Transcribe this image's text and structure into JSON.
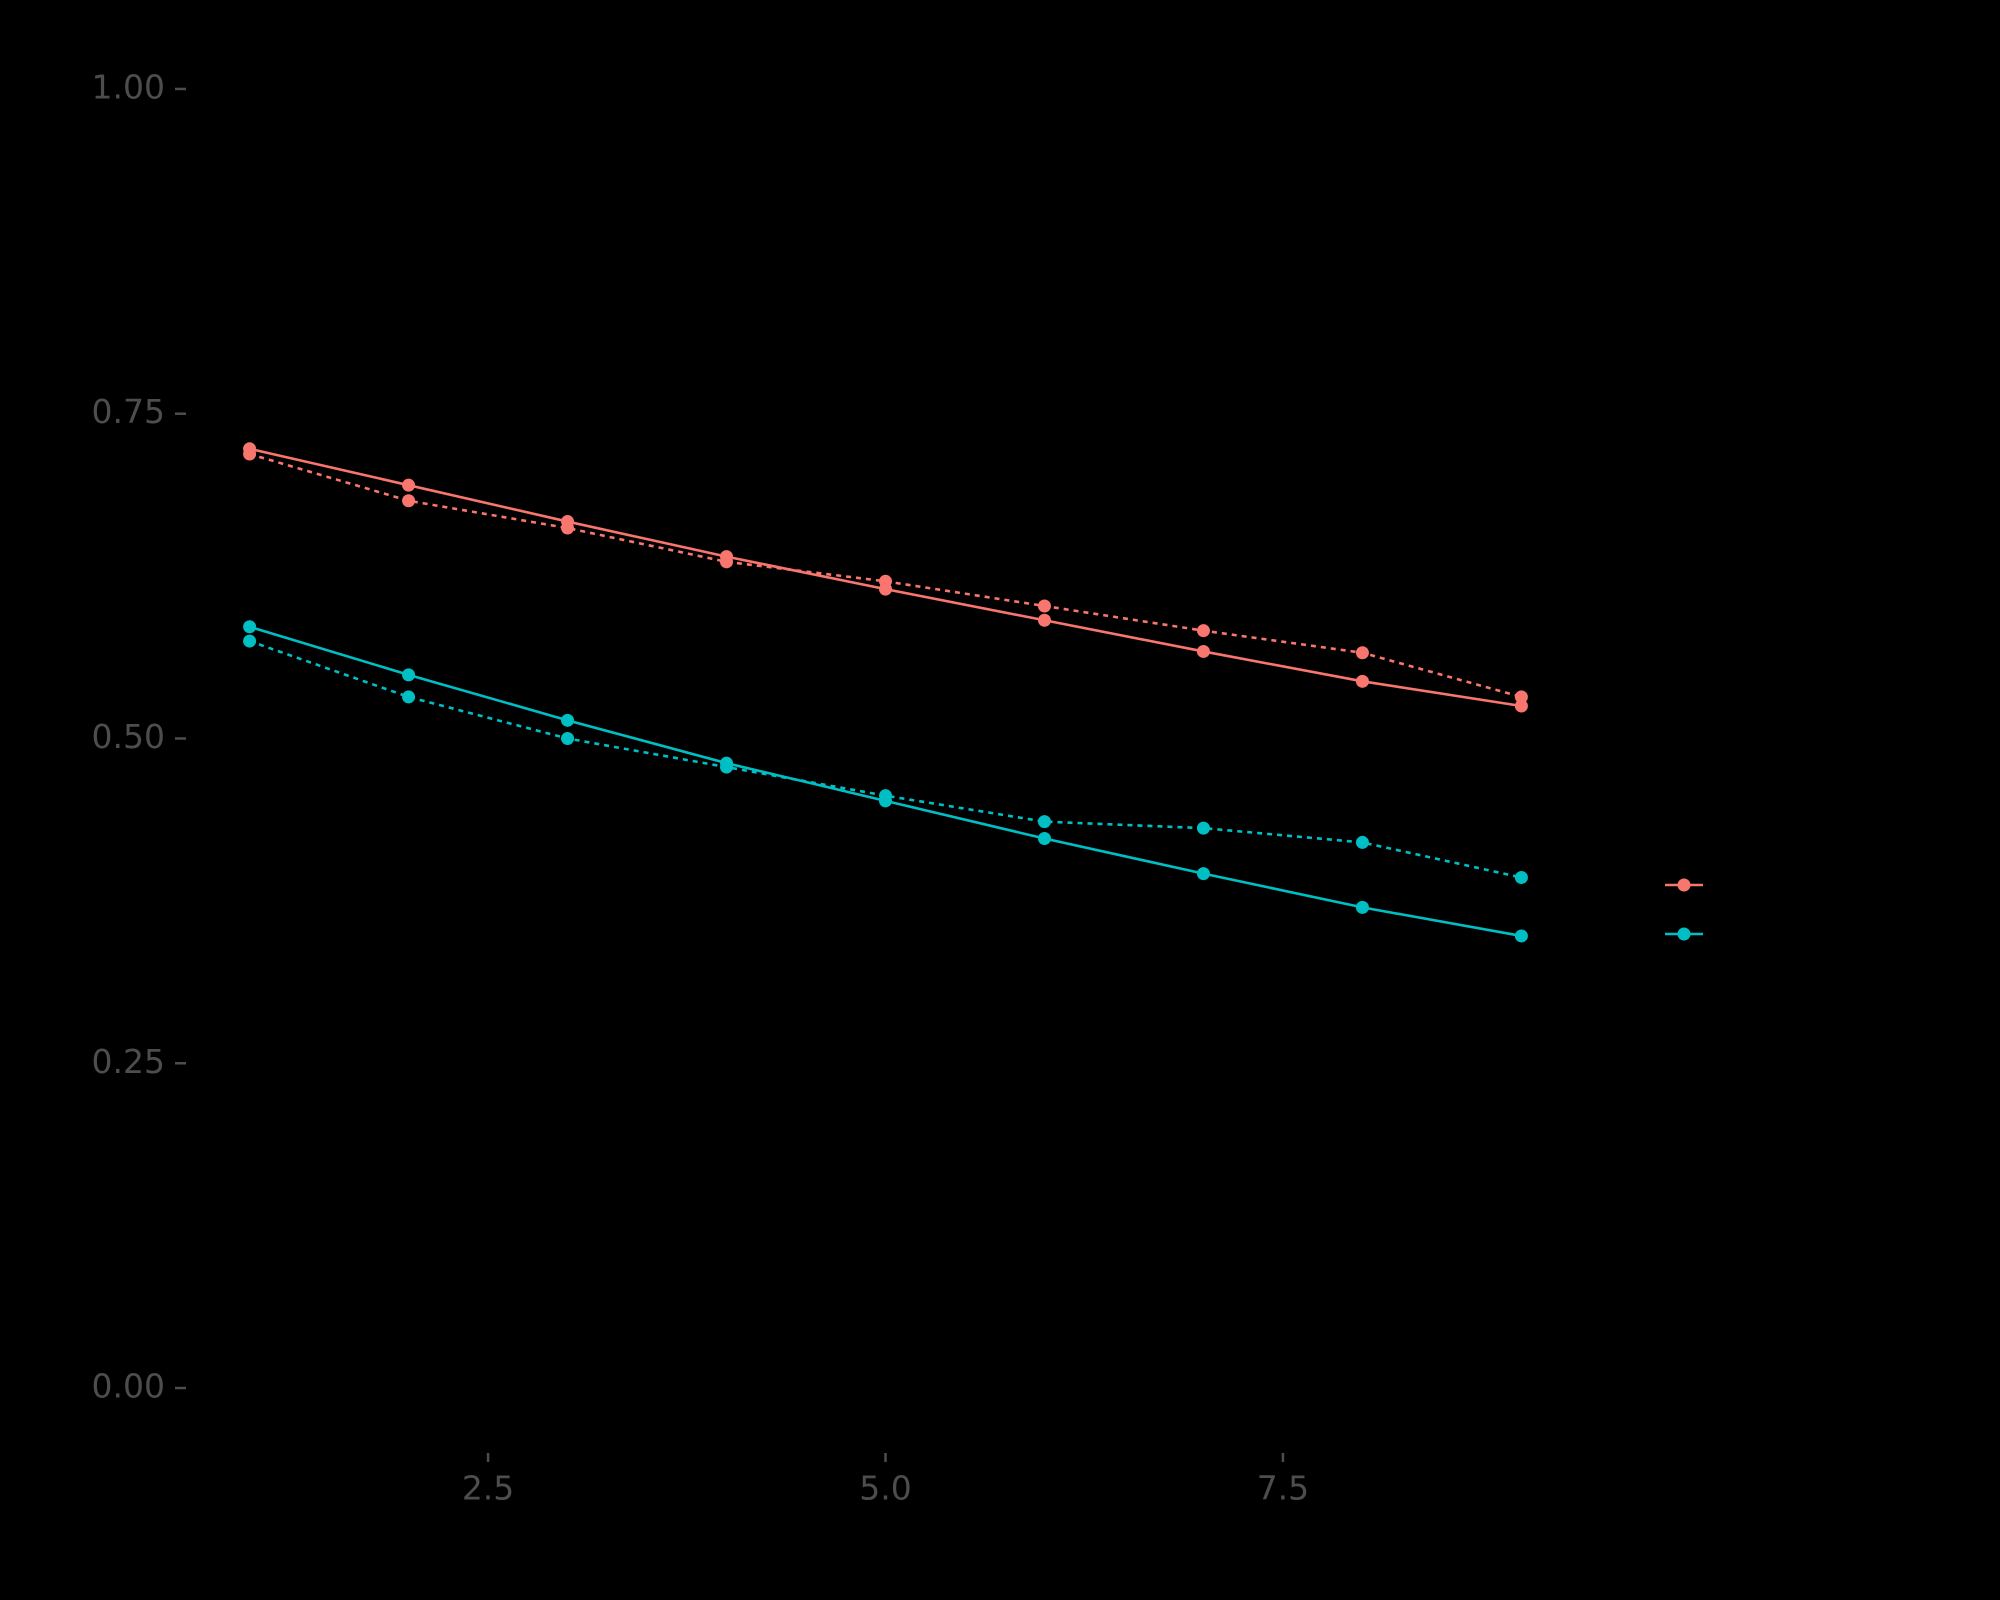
{
  "chart_data": {
    "type": "line",
    "x": [
      1,
      2,
      3,
      4,
      5,
      6,
      7,
      8,
      9
    ],
    "series": [
      {
        "color": "#F8766D",
        "linestyle": "solid",
        "values": [
          0.723,
          0.695,
          0.667,
          0.64,
          0.615,
          0.591,
          0.567,
          0.544,
          0.525
        ]
      },
      {
        "color": "#F8766D",
        "linestyle": "dotted",
        "values": [
          0.719,
          0.683,
          0.662,
          0.636,
          0.621,
          0.602,
          0.583,
          0.566,
          0.532
        ]
      },
      {
        "color": "#00BFC4",
        "linestyle": "solid",
        "values": [
          0.586,
          0.549,
          0.514,
          0.481,
          0.452,
          0.423,
          0.396,
          0.37,
          0.348
        ]
      },
      {
        "color": "#00BFC4",
        "linestyle": "dotted",
        "values": [
          0.575,
          0.532,
          0.5,
          0.478,
          0.456,
          0.436,
          0.431,
          0.42,
          0.393
        ]
      }
    ],
    "legend_colors": [
      "#F8766D",
      "#00BFC4"
    ],
    "xlim": [
      0.6,
      9.4
    ],
    "xticks": [
      {
        "value": 2.5,
        "label": "2.5"
      },
      {
        "value": 5,
        "label": "5.0"
      },
      {
        "value": 7.5,
        "label": "7.5"
      }
    ],
    "ylim": [
      -0.05,
      1.05
    ],
    "yticks": [
      {
        "value": 0,
        "label": "0.00"
      },
      {
        "value": 0.25,
        "label": "0.25"
      },
      {
        "value": 0.5,
        "label": "0.50"
      },
      {
        "value": 0.75,
        "label": "0.75"
      },
      {
        "value": 1,
        "label": "1.00"
      }
    ],
    "grid": false
  }
}
